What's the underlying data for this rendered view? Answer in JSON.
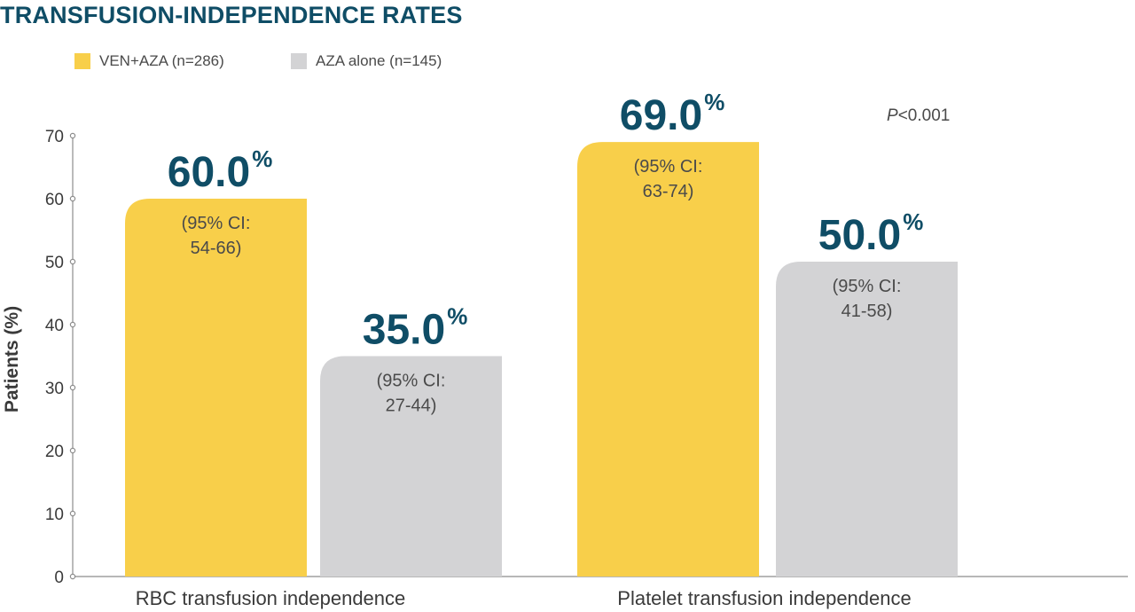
{
  "chart_data": {
    "type": "bar",
    "title": "TRANSFUSION-INDEPENDENCE RATES",
    "ylabel": "Patients (%)",
    "ylim": [
      0,
      70
    ],
    "yticks": [
      "0",
      "10",
      "20",
      "30",
      "40",
      "50",
      "60",
      "70"
    ],
    "categories": [
      "RBC transfusion independence",
      "Platelet transfusion independence"
    ],
    "series": [
      {
        "name": "VEN+AZA (n=286)",
        "color": "#f8cf4a",
        "values": [
          60.0,
          69.0
        ],
        "value_labels": [
          "60.0",
          "69.0"
        ],
        "ci_labels": [
          [
            "(95% CI:",
            "54-66)"
          ],
          [
            "(95% CI:",
            "63-74)"
          ]
        ]
      },
      {
        "name": "AZA alone (n=145)",
        "color": "#d3d3d5",
        "values": [
          35.0,
          50.0
        ],
        "value_labels": [
          "35.0",
          "50.0"
        ],
        "ci_labels": [
          [
            "(95% CI:",
            "27-44)"
          ],
          [
            "(95% CI:",
            "41-58)"
          ]
        ]
      }
    ],
    "value_suffix": "%",
    "annotations": [
      {
        "text_italic": "P",
        "text": "<0.001"
      }
    ],
    "legend_position": "top-left",
    "grid": false
  },
  "colors": {
    "title": "#0f4d66",
    "value_label": "#0f4d66",
    "axis": "#8c8c8c"
  }
}
